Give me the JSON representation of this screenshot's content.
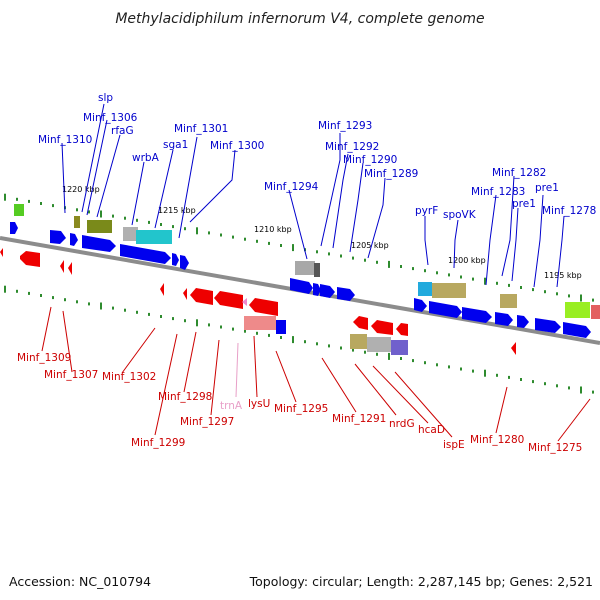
{
  "title": "Methylacidiphilum infernorum V4, complete genome",
  "footer": {
    "accession": "Accession: NC_010794",
    "summary": "Topology: circular; Length: 2,287,145 bp; Genes: 2,521"
  },
  "colors": {
    "forward_gene": "#0000ee",
    "reverse_gene": "#ee0000",
    "forward_label": "#0000cc",
    "reverse_label": "#cc0000",
    "trna_label": "#e8a0c8",
    "backbone": "#888888",
    "tick": "#2e8b2e"
  },
  "scale_labels": [
    "1220 kbp",
    "1215 kbp",
    "1210 kbp",
    "1205 kbp",
    "1200 kbp",
    "1195 kbp"
  ],
  "forward_genes": [
    "Minf_1310",
    "slp",
    "Minf_1306",
    "rfaG",
    "wrbA",
    "sga1",
    "Minf_1301",
    "Minf_1300",
    "Minf_1294",
    "Minf_1293",
    "Minf_1292",
    "Minf_1290",
    "Minf_1289",
    "pyrF",
    "spoVK",
    "Minf_1283",
    "Minf_1282",
    "pre1",
    "pre1",
    "Minf_1278"
  ],
  "reverse_genes": [
    "Minf_1309",
    "Minf_1307",
    "Minf_1302",
    "Minf_1299",
    "Minf_1298",
    "Minf_1297",
    "trnA",
    "lysU",
    "Minf_1295",
    "Minf_1291",
    "nrdG",
    "hcaD",
    "ispE",
    "Minf_1280",
    "Minf_1275"
  ]
}
